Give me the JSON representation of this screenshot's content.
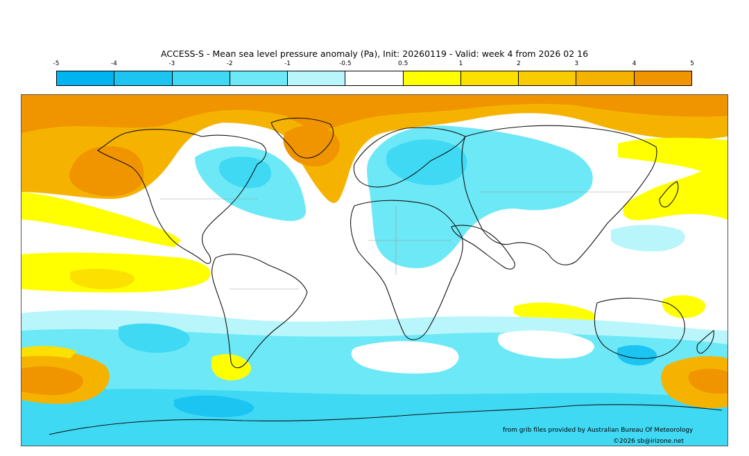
{
  "title": "ACCESS-S - Mean sea level pressure anomaly (Pa), Init: 20260119 - Valid: week 4 from 2026 02 16",
  "colorbar": {
    "ticks": [
      "-5",
      "-4",
      "-3",
      "-2",
      "-1",
      "-0.5",
      "0.5",
      "1",
      "2",
      "3",
      "4",
      "5"
    ],
    "colors": [
      "#00b4f0",
      "#1cc4f2",
      "#3fd9f4",
      "#6de8f6",
      "#b8f6fb",
      "#ffffff",
      "#ffff00",
      "#fbe000",
      "#f8cc00",
      "#f5b300",
      "#f09400"
    ]
  },
  "map": {
    "name": "world-map",
    "ocean_color": "#ffffff"
  },
  "credits": {
    "source": "from grib files provided by Australian Bureau Of Meteorology",
    "copyright": "©2026 sb@irizone.net"
  }
}
